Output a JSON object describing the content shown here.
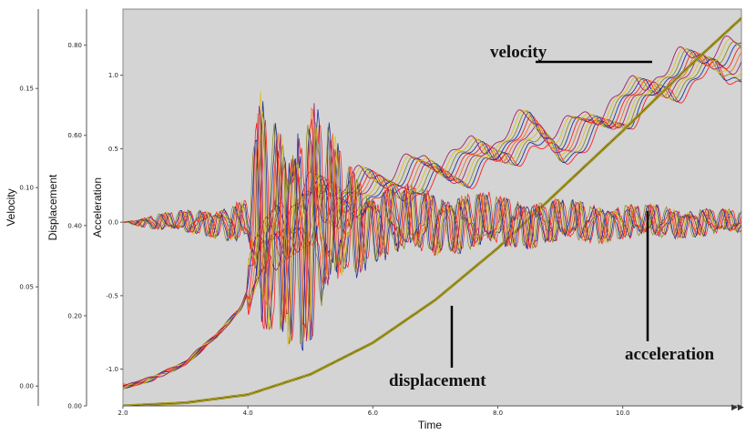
{
  "chart_data": {
    "type": "line",
    "xlabel": "Time",
    "xlim": [
      2.0,
      11.9
    ],
    "x_ticks": [
      "2.0",
      "4.0",
      "6.0",
      "8.0",
      "10.0"
    ],
    "grid": false,
    "plot_background": "#d4d4d4",
    "series_palette": [
      "#ff2020",
      "#2030a0",
      "#8a8a20",
      "#e0c020",
      "#a02070",
      "#f07020"
    ],
    "axes": {
      "velocity": {
        "label": "Velocity",
        "ylim": [
          -0.01,
          0.19
        ],
        "ticks": [
          "0.00",
          "0.05",
          "0.10",
          "0.15"
        ],
        "tick_values": [
          0.0,
          0.05,
          0.1,
          0.15
        ]
      },
      "displacement": {
        "label": "Displacement",
        "ylim": [
          0.0,
          0.88
        ],
        "ticks": [
          "0.00",
          "0.20",
          "0.40",
          "0.60",
          "0.80"
        ],
        "tick_values": [
          0.0,
          0.2,
          0.4,
          0.6,
          0.8
        ]
      },
      "acceleration": {
        "label": "Acceleration",
        "ylim": [
          -1.25,
          1.45
        ],
        "ticks": [
          "-1.0",
          "-0.5",
          "0.0",
          "0.5",
          "1.0"
        ],
        "tick_values": [
          -1.0,
          -0.5,
          0.0,
          0.5,
          1.0
        ]
      }
    },
    "series": [
      {
        "name": "velocity",
        "axis": "velocity",
        "x": [
          2.0,
          2.5,
          3.0,
          3.5,
          3.9,
          4.2,
          4.6,
          5.0,
          5.5,
          6.0,
          6.5,
          7.0,
          7.5,
          8.0,
          8.5,
          9.0,
          9.5,
          10.0,
          10.5,
          11.0,
          11.5,
          11.9
        ],
        "y": [
          0.0,
          0.004,
          0.012,
          0.025,
          0.04,
          0.065,
          0.08,
          0.09,
          0.095,
          0.1,
          0.104,
          0.108,
          0.112,
          0.118,
          0.128,
          0.122,
          0.13,
          0.14,
          0.15,
          0.158,
          0.165,
          0.163
        ]
      },
      {
        "name": "displacement",
        "axis": "displacement",
        "x": [
          2.0,
          3.0,
          4.0,
          5.0,
          6.0,
          7.0,
          8.0,
          9.0,
          10.0,
          11.0,
          11.9
        ],
        "y": [
          0.0,
          0.007,
          0.025,
          0.07,
          0.14,
          0.235,
          0.35,
          0.48,
          0.61,
          0.745,
          0.86
        ]
      },
      {
        "name": "acceleration",
        "axis": "acceleration",
        "x": [
          2.0,
          2.5,
          3.0,
          3.5,
          4.0,
          4.2,
          4.5,
          5.0,
          5.5,
          6.0,
          7.0,
          8.0,
          9.0,
          10.0,
          11.0,
          11.9
        ],
        "y": [
          0.0,
          0.05,
          0.08,
          0.1,
          0.15,
          0.9,
          0.7,
          0.85,
          0.45,
          0.25,
          0.22,
          0.18,
          0.15,
          0.12,
          0.1,
          0.08
        ]
      }
    ],
    "annotations": [
      "velocity",
      "displacement",
      "acceleration"
    ]
  }
}
